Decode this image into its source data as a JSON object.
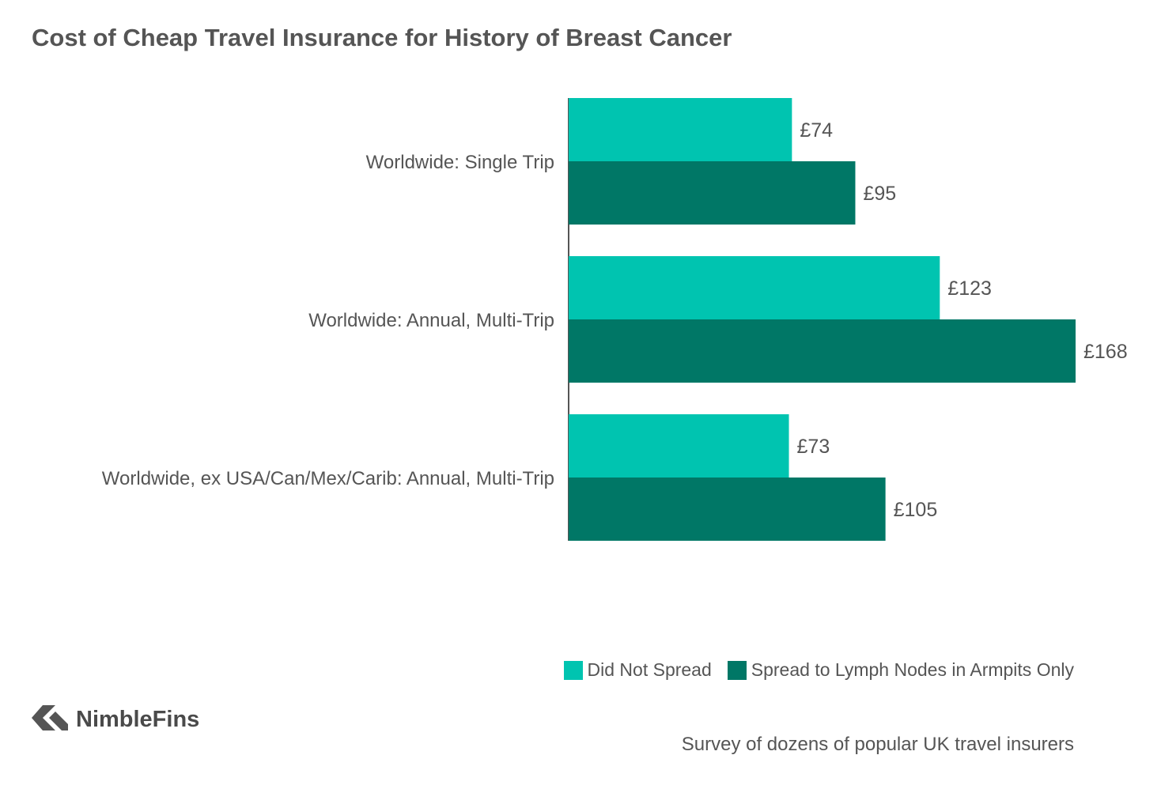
{
  "title": "Cost of Cheap Travel Insurance for History of Breast Cancer",
  "chart_data": {
    "type": "bar",
    "orientation": "horizontal",
    "title": "Cost of Cheap Travel Insurance for History of Breast Cancer",
    "categories": [
      "Worldwide: Single Trip",
      "Worldwide: Annual, Multi-Trip",
      "Worldwide, ex USA/Can/Mex/Carib: Annual, Multi-Trip"
    ],
    "series": [
      {
        "name": "Did Not Spread",
        "color": "#00c4b0",
        "values": [
          74,
          123,
          73
        ],
        "labels": [
          "£74",
          "£123",
          "£73"
        ]
      },
      {
        "name": "Spread to Lymph Nodes in Armpits Only",
        "color": "#007766",
        "values": [
          95,
          168,
          105
        ],
        "labels": [
          "£95",
          "£168",
          "£105"
        ]
      }
    ],
    "xlabel": "",
    "ylabel": "",
    "xlim": [
      0,
      168
    ],
    "grid": false,
    "legend_position": "bottom-right"
  },
  "legend": {
    "items": [
      {
        "label": "Did Not Spread",
        "color": "#00c4b0"
      },
      {
        "label": "Spread to Lymph Nodes in Armpits Only",
        "color": "#007766"
      }
    ]
  },
  "brand": {
    "name": "NimbleFins",
    "icon": "nimblefins-logo-icon"
  },
  "source": "Survey of dozens of popular UK travel insurers"
}
